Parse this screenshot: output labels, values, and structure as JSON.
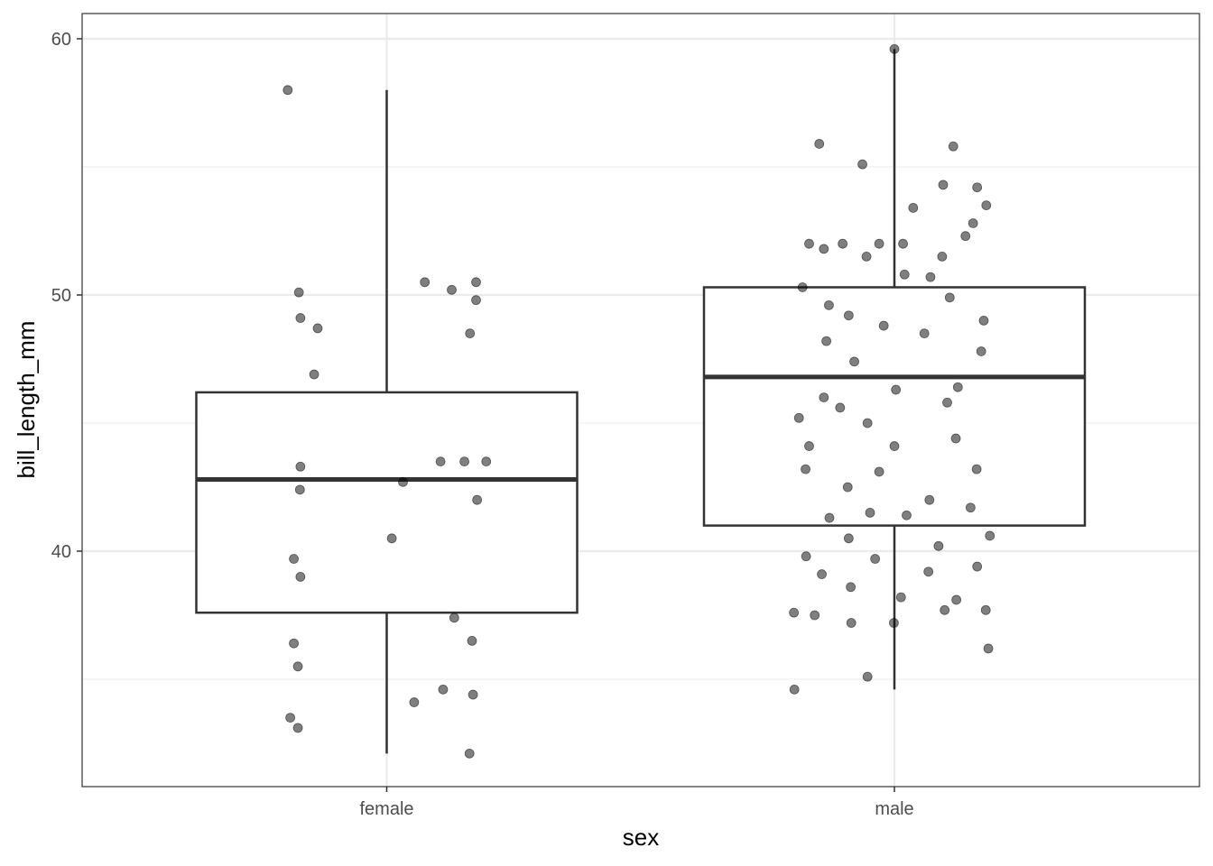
{
  "chart_data": {
    "type": "boxplot_jitter",
    "title": "",
    "xlabel": "sex",
    "ylabel": "bill_length_mm",
    "categories": [
      "female",
      "male"
    ],
    "ylim": [
      31.0,
      61.0
    ],
    "yticks": [
      40,
      50,
      60
    ],
    "yticks_labels": [
      "40",
      "50",
      "60"
    ],
    "grid": true,
    "legend": "none",
    "colors": {
      "points": "#000000",
      "box": "#333333",
      "grid": "#ebebeb",
      "panel_border": "#333333"
    },
    "boxes": [
      {
        "category": "female",
        "whisker_low": 32.1,
        "q1": 37.6,
        "median": 42.8,
        "q3": 46.2,
        "whisker_high": 58.0
      },
      {
        "category": "male",
        "whisker_low": 34.6,
        "q1": 41.0,
        "median": 46.8,
        "q3": 50.3,
        "whisker_high": 59.6
      }
    ],
    "points": {
      "female": [
        {
          "x": -0.195,
          "y": 58.0
        },
        {
          "x": -0.175,
          "y": 33.1
        },
        {
          "x": 0.163,
          "y": 32.1
        },
        {
          "x": -0.19,
          "y": 33.5
        },
        {
          "x": -0.175,
          "y": 35.5
        },
        {
          "x": 0.054,
          "y": 34.1
        },
        {
          "x": 0.111,
          "y": 34.6
        },
        {
          "x": 0.17,
          "y": 34.4
        },
        {
          "x": -0.173,
          "y": 50.1
        },
        {
          "x": -0.17,
          "y": 49.1
        },
        {
          "x": -0.136,
          "y": 48.7
        },
        {
          "x": -0.143,
          "y": 46.9
        },
        {
          "x": 0.075,
          "y": 50.5
        },
        {
          "x": 0.128,
          "y": 50.2
        },
        {
          "x": 0.176,
          "y": 50.5
        },
        {
          "x": 0.176,
          "y": 49.8
        },
        {
          "x": 0.164,
          "y": 48.5
        },
        {
          "x": -0.17,
          "y": 43.3
        },
        {
          "x": -0.171,
          "y": 42.4
        },
        {
          "x": -0.183,
          "y": 39.7
        },
        {
          "x": -0.17,
          "y": 39.0
        },
        {
          "x": -0.183,
          "y": 36.4
        },
        {
          "x": 0.01,
          "y": 40.5
        },
        {
          "x": 0.032,
          "y": 42.7
        },
        {
          "x": 0.106,
          "y": 43.5
        },
        {
          "x": 0.153,
          "y": 43.5
        },
        {
          "x": 0.196,
          "y": 43.5
        },
        {
          "x": 0.178,
          "y": 42.0
        },
        {
          "x": 0.133,
          "y": 37.4
        },
        {
          "x": 0.168,
          "y": 36.5
        }
      ],
      "male": [
        {
          "x": -0.148,
          "y": 55.9
        },
        {
          "x": -0.063,
          "y": 55.1
        },
        {
          "x": 0.0,
          "y": 59.6
        },
        {
          "x": 0.116,
          "y": 55.8
        },
        {
          "x": 0.163,
          "y": 54.2
        },
        {
          "x": 0.096,
          "y": 54.3
        },
        {
          "x": 0.037,
          "y": 53.4
        },
        {
          "x": 0.181,
          "y": 53.5
        },
        {
          "x": 0.155,
          "y": 52.8
        },
        {
          "x": -0.168,
          "y": 52.0
        },
        {
          "x": -0.139,
          "y": 51.8
        },
        {
          "x": -0.102,
          "y": 52.0
        },
        {
          "x": -0.055,
          "y": 51.5
        },
        {
          "x": -0.03,
          "y": 52.0
        },
        {
          "x": 0.017,
          "y": 52.0
        },
        {
          "x": 0.094,
          "y": 51.5
        },
        {
          "x": 0.14,
          "y": 52.3
        },
        {
          "x": -0.181,
          "y": 50.3
        },
        {
          "x": -0.129,
          "y": 49.6
        },
        {
          "x": -0.09,
          "y": 49.2
        },
        {
          "x": -0.021,
          "y": 48.8
        },
        {
          "x": 0.02,
          "y": 50.8
        },
        {
          "x": 0.071,
          "y": 50.7
        },
        {
          "x": 0.109,
          "y": 49.9
        },
        {
          "x": 0.176,
          "y": 49.0
        },
        {
          "x": -0.134,
          "y": 48.2
        },
        {
          "x": -0.079,
          "y": 47.4
        },
        {
          "x": 0.059,
          "y": 48.5
        },
        {
          "x": 0.171,
          "y": 47.8
        },
        {
          "x": -0.188,
          "y": 45.2
        },
        {
          "x": -0.139,
          "y": 46.0
        },
        {
          "x": -0.107,
          "y": 45.6
        },
        {
          "x": -0.053,
          "y": 45.0
        },
        {
          "x": 0.003,
          "y": 46.3
        },
        {
          "x": 0.125,
          "y": 46.4
        },
        {
          "x": 0.104,
          "y": 45.8
        },
        {
          "x": -0.168,
          "y": 44.1
        },
        {
          "x": -0.175,
          "y": 43.2
        },
        {
          "x": -0.092,
          "y": 42.5
        },
        {
          "x": -0.03,
          "y": 43.1
        },
        {
          "x": 0.0,
          "y": 44.1
        },
        {
          "x": 0.069,
          "y": 42.0
        },
        {
          "x": 0.121,
          "y": 44.4
        },
        {
          "x": 0.162,
          "y": 43.2
        },
        {
          "x": -0.128,
          "y": 41.3
        },
        {
          "x": -0.09,
          "y": 40.5
        },
        {
          "x": -0.048,
          "y": 41.5
        },
        {
          "x": 0.024,
          "y": 41.4
        },
        {
          "x": 0.087,
          "y": 40.2
        },
        {
          "x": 0.15,
          "y": 41.7
        },
        {
          "x": 0.188,
          "y": 40.6
        },
        {
          "x": -0.174,
          "y": 39.8
        },
        {
          "x": -0.143,
          "y": 39.1
        },
        {
          "x": -0.086,
          "y": 38.6
        },
        {
          "x": -0.038,
          "y": 39.7
        },
        {
          "x": 0.013,
          "y": 38.2
        },
        {
          "x": 0.067,
          "y": 39.2
        },
        {
          "x": 0.122,
          "y": 38.1
        },
        {
          "x": 0.163,
          "y": 39.4
        },
        {
          "x": -0.198,
          "y": 37.6
        },
        {
          "x": -0.157,
          "y": 37.5
        },
        {
          "x": -0.085,
          "y": 37.2
        },
        {
          "x": -0.001,
          "y": 37.2
        },
        {
          "x": 0.099,
          "y": 37.7
        },
        {
          "x": 0.18,
          "y": 37.7
        },
        {
          "x": 0.185,
          "y": 36.2
        },
        {
          "x": -0.053,
          "y": 35.1
        },
        {
          "x": -0.197,
          "y": 34.6
        }
      ]
    }
  }
}
